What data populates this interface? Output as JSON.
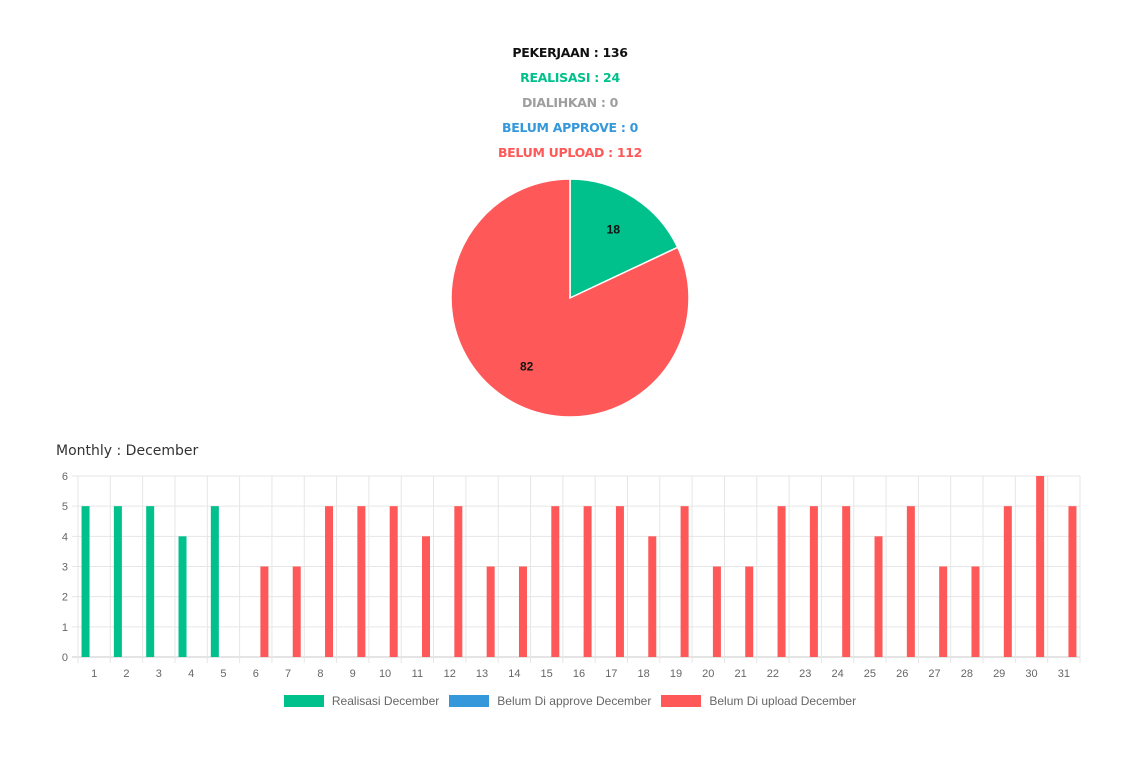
{
  "stats": {
    "pekerjaan": "PEKERJAAN : 136",
    "realisasi": "REALISASI : 24",
    "dialihkan": "DIALIHKAN : 0",
    "belum_approve": "BELUM APPROVE : 0",
    "belum_upload": "BELUM UPLOAD : 112"
  },
  "colors": {
    "black": "#111111",
    "green": "#00c08b",
    "gray": "#9e9e9e",
    "blue": "#3498db",
    "red": "#ff5858"
  },
  "monthly": {
    "title": "Monthly : December"
  },
  "chart_data": [
    {
      "type": "pie",
      "slices": [
        {
          "label": "18",
          "value": 18,
          "color": "#00c08b"
        },
        {
          "label": "82",
          "value": 82,
          "color": "#ff5858"
        }
      ]
    },
    {
      "type": "bar",
      "categories": [
        "1",
        "2",
        "3",
        "4",
        "5",
        "6",
        "7",
        "8",
        "9",
        "10",
        "11",
        "12",
        "13",
        "14",
        "15",
        "16",
        "17",
        "18",
        "19",
        "20",
        "21",
        "22",
        "23",
        "24",
        "25",
        "26",
        "27",
        "28",
        "29",
        "30",
        "31"
      ],
      "series": [
        {
          "name": "Realisasi December",
          "color": "#00c08b",
          "values": [
            5,
            5,
            5,
            4,
            5,
            0,
            0,
            0,
            0,
            0,
            0,
            0,
            0,
            0,
            0,
            0,
            0,
            0,
            0,
            0,
            0,
            0,
            0,
            0,
            0,
            0,
            0,
            0,
            0,
            0,
            0
          ]
        },
        {
          "name": "Belum Di approve December",
          "color": "#3498db",
          "values": [
            0,
            0,
            0,
            0,
            0,
            0,
            0,
            0,
            0,
            0,
            0,
            0,
            0,
            0,
            0,
            0,
            0,
            0,
            0,
            0,
            0,
            0,
            0,
            0,
            0,
            0,
            0,
            0,
            0,
            0,
            0
          ]
        },
        {
          "name": "Belum Di upload December",
          "color": "#ff5858",
          "values": [
            0,
            0,
            0,
            0,
            0,
            3,
            3,
            5,
            5,
            5,
            4,
            5,
            3,
            3,
            5,
            5,
            5,
            4,
            5,
            3,
            3,
            5,
            5,
            5,
            4,
            5,
            3,
            3,
            5,
            6,
            5
          ]
        }
      ],
      "ylim": [
        0,
        6
      ],
      "yticks": [
        0,
        1,
        2,
        3,
        4,
        5,
        6
      ],
      "grid": true,
      "legend": "bottom"
    }
  ]
}
